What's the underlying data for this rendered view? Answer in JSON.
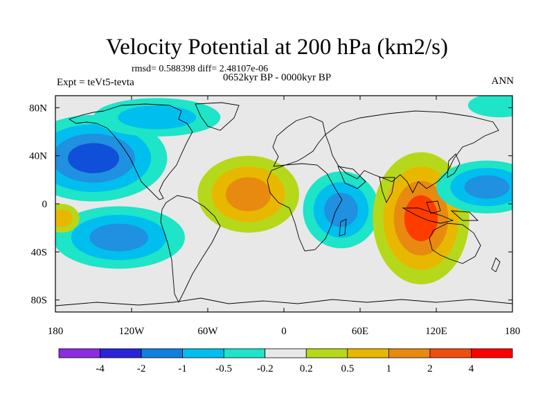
{
  "title": "Velocity Potential at 200 hPa (km2/s)",
  "stats": "rmsd= 0.588398 diff= 2.48107e-06",
  "experiment": "Expt = teVt5-tevta",
  "period": "0652kyr BP - 0000kyr BP",
  "season": "ANN",
  "map": {
    "lon_range": [
      -180,
      180
    ],
    "lat_range": [
      -90,
      90
    ],
    "x_ticks": [
      {
        "value": -180,
        "label": "180"
      },
      {
        "value": -120,
        "label": "120W"
      },
      {
        "value": -60,
        "label": "60W"
      },
      {
        "value": 0,
        "label": "0"
      },
      {
        "value": 60,
        "label": "60E"
      },
      {
        "value": 120,
        "label": "120E"
      },
      {
        "value": 180,
        "label": "180"
      }
    ],
    "y_ticks": [
      {
        "value": 80,
        "label": "80N"
      },
      {
        "value": 40,
        "label": "40N"
      },
      {
        "value": 0,
        "label": "0"
      },
      {
        "value": -40,
        "label": "40S"
      },
      {
        "value": -80,
        "label": "80S"
      }
    ],
    "background_color": "#e8e8e8",
    "features": [
      {
        "name": "north-pacific-negative",
        "lon": -150,
        "lat": 38,
        "rx": 58,
        "ry": 36,
        "levels": [
          "#1ee4c8",
          "#00bfef",
          "#2090e0",
          "#1050d8"
        ]
      },
      {
        "name": "north-america-negative",
        "lon": -100,
        "lat": 72,
        "rx": 50,
        "ry": 16,
        "levels": [
          "#1ee4c8",
          "#00bfef"
        ]
      },
      {
        "name": "south-pacific-negative",
        "lon": -130,
        "lat": -28,
        "rx": 52,
        "ry": 26,
        "levels": [
          "#1ee4c8",
          "#00bfef",
          "#2090e0"
        ]
      },
      {
        "name": "atlantic-positive",
        "lon": -28,
        "lat": 8,
        "rx": 40,
        "ry": 32,
        "levels": [
          "#b6d81a",
          "#e8b800",
          "#e88a10"
        ]
      },
      {
        "name": "africa-indian-negative",
        "lon": 45,
        "lat": -5,
        "rx": 30,
        "ry": 32,
        "levels": [
          "#1ee4c8",
          "#00bfef",
          "#2090e0"
        ]
      },
      {
        "name": "maritime-continent-positive",
        "lon": 108,
        "lat": -12,
        "rx": 38,
        "ry": 55,
        "levels": [
          "#b6d81a",
          "#e8b800",
          "#e88a10",
          "#ff3c00"
        ]
      },
      {
        "name": "west-pacific-negative",
        "lon": 160,
        "lat": 14,
        "rx": 40,
        "ry": 22,
        "levels": [
          "#1ee4c8",
          "#00bfef",
          "#2090e0"
        ]
      },
      {
        "name": "east-pacific-positive",
        "lon": -175,
        "lat": -12,
        "rx": 14,
        "ry": 12,
        "levels": [
          "#b6d81a",
          "#e8b800"
        ]
      },
      {
        "name": "arctic-positive",
        "lon": 170,
        "lat": 82,
        "rx": 25,
        "ry": 10,
        "levels": [
          "#1ee4c8"
        ]
      }
    ]
  },
  "colorbar": {
    "colors": [
      "#8b2be2",
      "#2a24d8",
      "#1080e0",
      "#00bfef",
      "#1ee4c8",
      "#e8e8e8",
      "#b6d81a",
      "#e8b800",
      "#e88a10",
      "#f04e10",
      "#ff0000"
    ],
    "labels": [
      "-4",
      "-2",
      "-1",
      "-0.5",
      "-0.2",
      "0.2",
      "0.5",
      "1",
      "2",
      "4"
    ]
  }
}
